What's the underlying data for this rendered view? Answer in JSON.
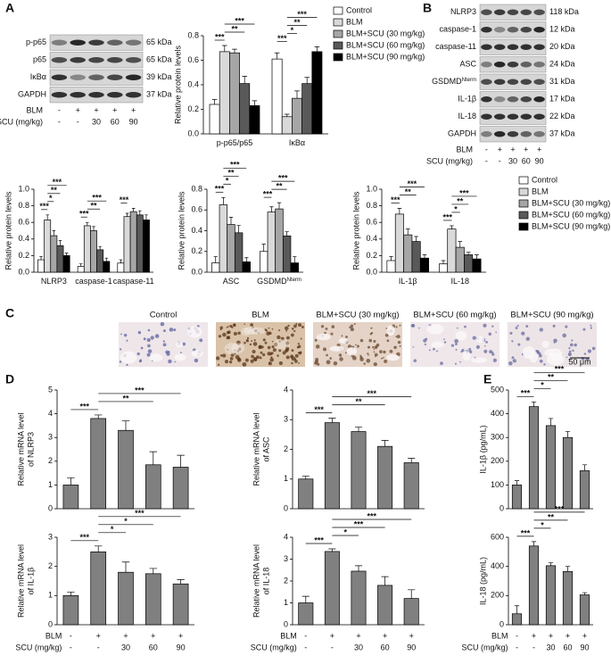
{
  "panel_letters": [
    "A",
    "B",
    "C",
    "D",
    "E"
  ],
  "blots": [
    {
      "rows": [
        {
          "label": "p-p65",
          "size": "65 kDa"
        },
        {
          "label": "p65",
          "size": "65 kDa"
        },
        {
          "label": "IκBα",
          "size": "39 kDa"
        },
        {
          "label": "GAPDH",
          "size": "37 kDa"
        }
      ],
      "treatment": [
        {
          "label": "BLM",
          "values": [
            "-",
            "+",
            "+",
            "+",
            "+"
          ]
        },
        {
          "label": "SCU (mg/kg)",
          "values": [
            "-",
            "-",
            "30",
            "60",
            "90"
          ]
        }
      ]
    },
    {
      "rows": [
        {
          "label": "NLRP3",
          "size": "118 kDa"
        },
        {
          "label": "caspase-1",
          "size": "12 kDa"
        },
        {
          "label": "caspase-11",
          "size": "20 kDa"
        },
        {
          "label": "ASC",
          "size": "24 kDa"
        },
        {
          "label": "GSDMD",
          "sup": "Nterm",
          "size": "31 kDa"
        },
        {
          "label": "IL-1β",
          "size": "17 kDa"
        },
        {
          "label": "IL-18",
          "size": "22 kDa"
        },
        {
          "label": "GAPDH",
          "size": "37 kDa"
        }
      ],
      "treatment": [
        {
          "label": "BLM",
          "values": [
            "-",
            "+",
            "+",
            "+",
            "+"
          ]
        },
        {
          "label": "SCU (mg/kg)",
          "values": [
            "-",
            "-",
            "30",
            "60",
            "90"
          ]
        }
      ]
    }
  ],
  "micrographs": {
    "labels": [
      "Control",
      "BLM",
      "BLM+SCU (30 mg/kg)",
      "BLM+SCU (60 mg/kg)",
      "BLM+SCU (90 mg/kg)"
    ],
    "scale_bar": "50 μm"
  },
  "chart_data": [
    {
      "type": "bar",
      "y_label": "Relative protein levels",
      "categories": [
        "p-p65/p65",
        "IκBα"
      ],
      "series": [
        {
          "name": "Control",
          "color": "#ffffff",
          "values": [
            0.24,
            0.61
          ],
          "errors": [
            0.04,
            0.05
          ]
        },
        {
          "name": "BLM",
          "color": "#d9d9d9",
          "values": [
            0.67,
            0.14
          ],
          "errors": [
            0.05,
            0.02
          ]
        },
        {
          "name": "BLM+SCU (30 mg/kg)",
          "color": "#a6a6a6",
          "values": [
            0.66,
            0.29
          ],
          "errors": [
            0.03,
            0.06
          ]
        },
        {
          "name": "BLM+SCU (60 mg/kg)",
          "color": "#595959",
          "values": [
            0.41,
            0.41
          ],
          "errors": [
            0.06,
            0.05
          ]
        },
        {
          "name": "BLM+SCU (90 mg/kg)",
          "color": "#000000",
          "values": [
            0.23,
            0.67
          ],
          "errors": [
            0.04,
            0.04
          ]
        }
      ],
      "ylim": [
        0,
        0.8
      ],
      "yticks": [
        {
          "value": 0,
          "label": "0.0"
        },
        0.2,
        0.4,
        0.6,
        0.8
      ],
      "legend": "right",
      "significance": [
        {
          "category": 0,
          "from": 0,
          "to": 1,
          "label": "***"
        },
        {
          "category": 0,
          "from": 1,
          "to": 3,
          "label": "**"
        },
        {
          "category": 0,
          "from": 1,
          "to": 4,
          "label": "***"
        },
        {
          "category": 1,
          "from": 0,
          "to": 1,
          "label": "***"
        },
        {
          "category": 1,
          "from": 1,
          "to": 2,
          "label": "*"
        },
        {
          "category": 1,
          "from": 1,
          "to": 3,
          "label": "**"
        },
        {
          "category": 1,
          "from": 1,
          "to": 4,
          "label": "***"
        }
      ]
    },
    {
      "type": "bar",
      "y_label": "Relative protein levels",
      "categories": [
        "NLRP3",
        "caspase-1",
        "caspase-11"
      ],
      "series": [
        {
          "name": "Control",
          "color": "#ffffff",
          "values": [
            0.15,
            0.07,
            0.11
          ],
          "errors": [
            0.04,
            0.03,
            0.04
          ]
        },
        {
          "name": "BLM",
          "color": "#d9d9d9",
          "values": [
            0.63,
            0.56,
            0.67
          ],
          "errors": [
            0.06,
            0.04,
            0.04
          ]
        },
        {
          "name": "BLM+SCU (30 mg/kg)",
          "color": "#a6a6a6",
          "values": [
            0.44,
            0.5,
            0.73
          ],
          "errors": [
            0.06,
            0.05,
            0.04
          ]
        },
        {
          "name": "BLM+SCU (60 mg/kg)",
          "color": "#595959",
          "values": [
            0.32,
            0.27,
            0.69
          ],
          "errors": [
            0.06,
            0.04,
            0.05
          ]
        },
        {
          "name": "BLM+SCU (90 mg/kg)",
          "color": "#000000",
          "values": [
            0.2,
            0.13,
            0.63
          ],
          "errors": [
            0.03,
            0.04,
            0.06
          ]
        }
      ],
      "ylim": [
        0,
        1
      ],
      "yticks": [
        {
          "value": 0,
          "label": "0.0"
        },
        0.2,
        0.4,
        0.6,
        0.8,
        {
          "value": 1,
          "label": "1.0"
        }
      ],
      "significance": [
        {
          "category": 0,
          "from": 0,
          "to": 1,
          "label": "***"
        },
        {
          "category": 0,
          "from": 1,
          "to": 2,
          "label": "*"
        },
        {
          "category": 0,
          "from": 1,
          "to": 3,
          "label": "**"
        },
        {
          "category": 0,
          "from": 1,
          "to": 4,
          "label": "***"
        },
        {
          "category": 1,
          "from": 0,
          "to": 1,
          "label": "***"
        },
        {
          "category": 1,
          "from": 1,
          "to": 3,
          "label": "**"
        },
        {
          "category": 1,
          "from": 1,
          "to": 4,
          "label": "***"
        },
        {
          "category": 2,
          "from": 0,
          "to": 1,
          "label": "***"
        }
      ]
    },
    {
      "type": "bar",
      "y_label": "Relative protein levels",
      "categories": [
        "ASC",
        "GSDMD"
      ],
      "category_sup": [
        null,
        "Nterm"
      ],
      "series": [
        {
          "name": "Control",
          "color": "#ffffff",
          "values": [
            0.09,
            0.2
          ],
          "errors": [
            0.06,
            0.07
          ]
        },
        {
          "name": "BLM",
          "color": "#d9d9d9",
          "values": [
            0.65,
            0.58
          ],
          "errors": [
            0.07,
            0.05
          ]
        },
        {
          "name": "BLM+SCU (30 mg/kg)",
          "color": "#a6a6a6",
          "values": [
            0.46,
            0.61
          ],
          "errors": [
            0.07,
            0.06
          ]
        },
        {
          "name": "BLM+SCU (60 mg/kg)",
          "color": "#595959",
          "values": [
            0.38,
            0.35
          ],
          "errors": [
            0.07,
            0.04
          ]
        },
        {
          "name": "BLM+SCU (90 mg/kg)",
          "color": "#000000",
          "values": [
            0.1,
            0.09
          ],
          "errors": [
            0.04,
            0.06
          ]
        }
      ],
      "ylim": [
        0,
        0.8
      ],
      "yticks": [
        {
          "value": 0,
          "label": "0.0"
        },
        0.2,
        0.4,
        0.6,
        0.8
      ],
      "significance": [
        {
          "category": 0,
          "from": 0,
          "to": 1,
          "label": "***"
        },
        {
          "category": 0,
          "from": 1,
          "to": 2,
          "label": "*"
        },
        {
          "category": 0,
          "from": 1,
          "to": 3,
          "label": "**"
        },
        {
          "category": 0,
          "from": 1,
          "to": 4,
          "label": "***"
        },
        {
          "category": 1,
          "from": 0,
          "to": 1,
          "label": "***"
        },
        {
          "category": 1,
          "from": 1,
          "to": 3,
          "label": "**"
        },
        {
          "category": 1,
          "from": 1,
          "to": 4,
          "label": "***"
        }
      ]
    },
    {
      "type": "bar",
      "y_label": "Relative protein levels",
      "categories": [
        "IL-1β",
        "IL-18"
      ],
      "series": [
        {
          "name": "Control",
          "color": "#ffffff",
          "values": [
            0.14,
            0.1
          ],
          "errors": [
            0.05,
            0.04
          ]
        },
        {
          "name": "BLM",
          "color": "#d9d9d9",
          "values": [
            0.7,
            0.52
          ],
          "errors": [
            0.07,
            0.04
          ]
        },
        {
          "name": "BLM+SCU (30 mg/kg)",
          "color": "#a6a6a6",
          "values": [
            0.45,
            0.3
          ],
          "errors": [
            0.07,
            0.07
          ]
        },
        {
          "name": "BLM+SCU (60 mg/kg)",
          "color": "#595959",
          "values": [
            0.37,
            0.21
          ],
          "errors": [
            0.06,
            0.03
          ]
        },
        {
          "name": "BLM+SCU (90 mg/kg)",
          "color": "#000000",
          "values": [
            0.17,
            0.16
          ],
          "errors": [
            0.04,
            0.05
          ]
        }
      ],
      "ylim": [
        0,
        1
      ],
      "yticks": [
        {
          "value": 0,
          "label": "0.0"
        },
        0.2,
        0.4,
        0.6,
        0.8,
        {
          "value": 1,
          "label": "1.0"
        }
      ],
      "legend": "right",
      "significance": [
        {
          "category": 0,
          "from": 0,
          "to": 1,
          "label": "***"
        },
        {
          "category": 0,
          "from": 1,
          "to": 3,
          "label": "**"
        },
        {
          "category": 0,
          "from": 1,
          "to": 4,
          "label": "***"
        },
        {
          "category": 1,
          "from": 0,
          "to": 1,
          "label": "***"
        },
        {
          "category": 1,
          "from": 1,
          "to": 2,
          "label": "*"
        },
        {
          "category": 1,
          "from": 1,
          "to": 3,
          "label": "**"
        },
        {
          "category": 1,
          "from": 1,
          "to": 4,
          "label": "***"
        }
      ]
    },
    {
      "type": "bar",
      "y_label": [
        "Relative mRNA level",
        "of NLRP3"
      ],
      "color": "#808080",
      "values": [
        1.0,
        3.8,
        3.3,
        1.85,
        1.75
      ],
      "errors": [
        0.3,
        0.15,
        0.4,
        0.55,
        0.5
      ],
      "ylim": [
        0,
        5
      ],
      "yticks": [
        0,
        1,
        2,
        3,
        4,
        5
      ],
      "significance": [
        {
          "from": 0,
          "to": 1,
          "label": "***"
        },
        {
          "from": 1,
          "to": 3,
          "label": "**"
        },
        {
          "from": 1,
          "to": 4,
          "label": "***"
        }
      ]
    },
    {
      "type": "bar",
      "y_label": [
        "Relative mRNA level",
        "of ASC"
      ],
      "color": "#808080",
      "values": [
        1.0,
        2.9,
        2.6,
        2.1,
        1.55
      ],
      "errors": [
        0.1,
        0.15,
        0.15,
        0.2,
        0.15
      ],
      "ylim": [
        0,
        4
      ],
      "yticks": [
        0,
        1,
        2,
        3,
        4
      ],
      "significance": [
        {
          "from": 0,
          "to": 1,
          "label": "***"
        },
        {
          "from": 1,
          "to": 3,
          "label": "**"
        },
        {
          "from": 1,
          "to": 4,
          "label": "***"
        }
      ]
    },
    {
      "type": "bar",
      "y_label": [
        "Relative mRNA level",
        "of IL-1β"
      ],
      "color": "#808080",
      "values": [
        1.0,
        2.5,
        1.8,
        1.75,
        1.4
      ],
      "errors": [
        0.12,
        0.2,
        0.35,
        0.18,
        0.15
      ],
      "ylim": [
        0,
        3
      ],
      "yticks": [
        0,
        1,
        2,
        3
      ],
      "significance": [
        {
          "from": 0,
          "to": 1,
          "label": "***"
        },
        {
          "from": 1,
          "to": 2,
          "label": "*"
        },
        {
          "from": 1,
          "to": 3,
          "label": "*"
        },
        {
          "from": 1,
          "to": 4,
          "label": "***"
        }
      ],
      "treatment": [
        {
          "label": "BLM",
          "values": [
            "-",
            "+",
            "+",
            "+",
            "+"
          ]
        },
        {
          "label": "SCU (mg/kg)",
          "values": [
            "-",
            "-",
            "30",
            "60",
            "90"
          ]
        }
      ]
    },
    {
      "type": "bar",
      "y_label": [
        "Relative mRNA level",
        "of IL-18"
      ],
      "color": "#808080",
      "values": [
        1.0,
        3.35,
        2.45,
        1.8,
        1.2
      ],
      "errors": [
        0.3,
        0.12,
        0.25,
        0.4,
        0.4
      ],
      "ylim": [
        0,
        4
      ],
      "yticks": [
        0,
        1,
        2,
        3,
        4
      ],
      "significance": [
        {
          "from": 0,
          "to": 1,
          "label": "***"
        },
        {
          "from": 1,
          "to": 2,
          "label": "*"
        },
        {
          "from": 1,
          "to": 3,
          "label": "***"
        },
        {
          "from": 1,
          "to": 4,
          "label": "***"
        }
      ],
      "treatment": [
        {
          "label": "BLM",
          "values": [
            "-",
            "+",
            "+",
            "+",
            "+"
          ]
        },
        {
          "label": "SCU (mg/kg)",
          "values": [
            "-",
            "-",
            "30",
            "60",
            "90"
          ]
        }
      ]
    },
    {
      "type": "bar",
      "y_label": "IL-1β (pg/mL)",
      "color": "#808080",
      "values": [
        100,
        430,
        350,
        300,
        160
      ],
      "errors": [
        18,
        20,
        30,
        25,
        25
      ],
      "ylim": [
        0,
        500
      ],
      "yticks": [
        0,
        100,
        200,
        300,
        400,
        500
      ],
      "significance": [
        {
          "from": 0,
          "to": 1,
          "label": "***"
        },
        {
          "from": 1,
          "to": 2,
          "label": "*"
        },
        {
          "from": 1,
          "to": 3,
          "label": "**"
        },
        {
          "from": 1,
          "to": 4,
          "label": "***"
        }
      ]
    },
    {
      "type": "bar",
      "y_label": "IL-18 (pg/mL)",
      "color": "#808080",
      "values": [
        75,
        540,
        405,
        365,
        205
      ],
      "errors": [
        55,
        30,
        20,
        35,
        15
      ],
      "ylim": [
        0,
        600
      ],
      "yticks": [
        0,
        200,
        400,
        600
      ],
      "significance": [
        {
          "from": 0,
          "to": 1,
          "label": "***"
        },
        {
          "from": 1,
          "to": 2,
          "label": "*"
        },
        {
          "from": 1,
          "to": 3,
          "label": "**"
        },
        {
          "from": 1,
          "to": 4,
          "label": "***"
        }
      ],
      "treatment": [
        {
          "label": "BLM",
          "values": [
            "-",
            "+",
            "+",
            "+",
            "+"
          ]
        },
        {
          "label": "SCU (mg/kg)",
          "values": [
            "-",
            "-",
            "30",
            "60",
            "90"
          ]
        }
      ]
    }
  ]
}
